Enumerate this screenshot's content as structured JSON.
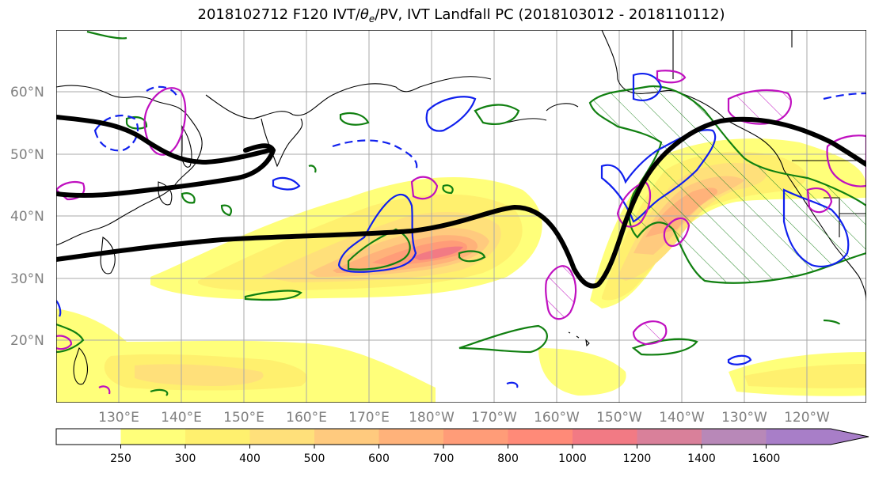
{
  "title": {
    "prefix": "2018102712 F120 IVT/",
    "theta": "θ",
    "theta_sub": "e",
    "suffix": "/PV, IVT Landfall PC (2018103012 - 2018110112)"
  },
  "lat_labels": [
    "60°N",
    "50°N",
    "40°N",
    "30°N",
    "20°N"
  ],
  "lon_labels": [
    "130°E",
    "140°E",
    "150°E",
    "160°E",
    "170°E",
    "180°W",
    "170°W",
    "160°W",
    "150°W",
    "140°W",
    "130°W",
    "120°W"
  ],
  "colorbar": {
    "ticks": [
      "250",
      "300",
      "400",
      "500",
      "600",
      "700",
      "800",
      "1000",
      "1200",
      "1400",
      "1600"
    ],
    "colors": [
      "#ffffff",
      "#ffff7a",
      "#fff06e",
      "#ffe07a",
      "#ffca7e",
      "#ffb27a",
      "#ff9c78",
      "#ff8a78",
      "#f27a84",
      "#d9809a",
      "#b888b8",
      "#a87ec8"
    ]
  },
  "colors": {
    "jet": "#000000",
    "theta_e": "#118011",
    "pv_solid": "#1020ee",
    "pv_magenta": "#c010c0"
  }
}
